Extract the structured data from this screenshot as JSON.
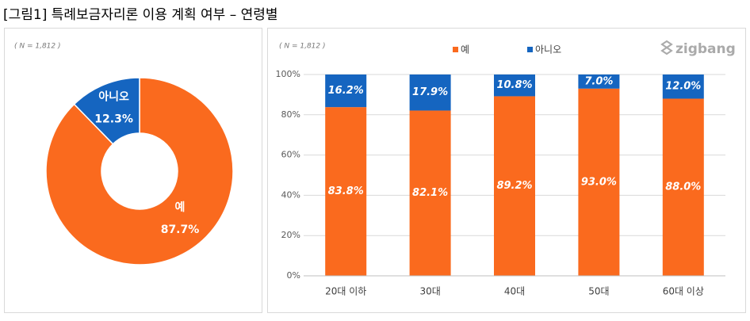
{
  "title": "[그림1] 특례보금자리론 이용 계획 여부 – 연령별",
  "chart_data": [
    {
      "type": "pie",
      "note": "( N = 1,812 )",
      "donut": true,
      "categories": [
        "예",
        "아니오"
      ],
      "values": [
        87.7,
        12.3
      ],
      "value_labels": [
        "87.7%",
        "12.3%"
      ],
      "colors": [
        "#fa6a1e",
        "#1565c0"
      ]
    },
    {
      "type": "bar",
      "stacked": true,
      "note": "( N = 1,812 )",
      "watermark": "zigbang",
      "categories": [
        "20대 이하",
        "30대",
        "40대",
        "50대",
        "60대 이상"
      ],
      "series": [
        {
          "name": "예",
          "color": "#fa6a1e",
          "values": [
            83.8,
            82.1,
            89.2,
            93.0,
            88.0
          ],
          "value_labels": [
            "83.8%",
            "82.1%",
            "89.2%",
            "93.0%",
            "88.0%"
          ]
        },
        {
          "name": "아니오",
          "color": "#1565c0",
          "values": [
            16.2,
            17.9,
            10.8,
            7.0,
            12.0
          ],
          "value_labels": [
            "16.2%",
            "17.9%",
            "10.8%",
            "7.0%",
            "12.0%"
          ]
        }
      ],
      "ylim": [
        0,
        100
      ],
      "yticks": [
        {
          "value": 0,
          "label": "0%"
        },
        {
          "value": 20,
          "label": "20%"
        },
        {
          "value": 40,
          "label": "40%"
        },
        {
          "value": 60,
          "label": "60%"
        },
        {
          "value": 80,
          "label": "80%"
        },
        {
          "value": 100,
          "label": "100%"
        }
      ],
      "grid": true,
      "legend": "top"
    }
  ]
}
